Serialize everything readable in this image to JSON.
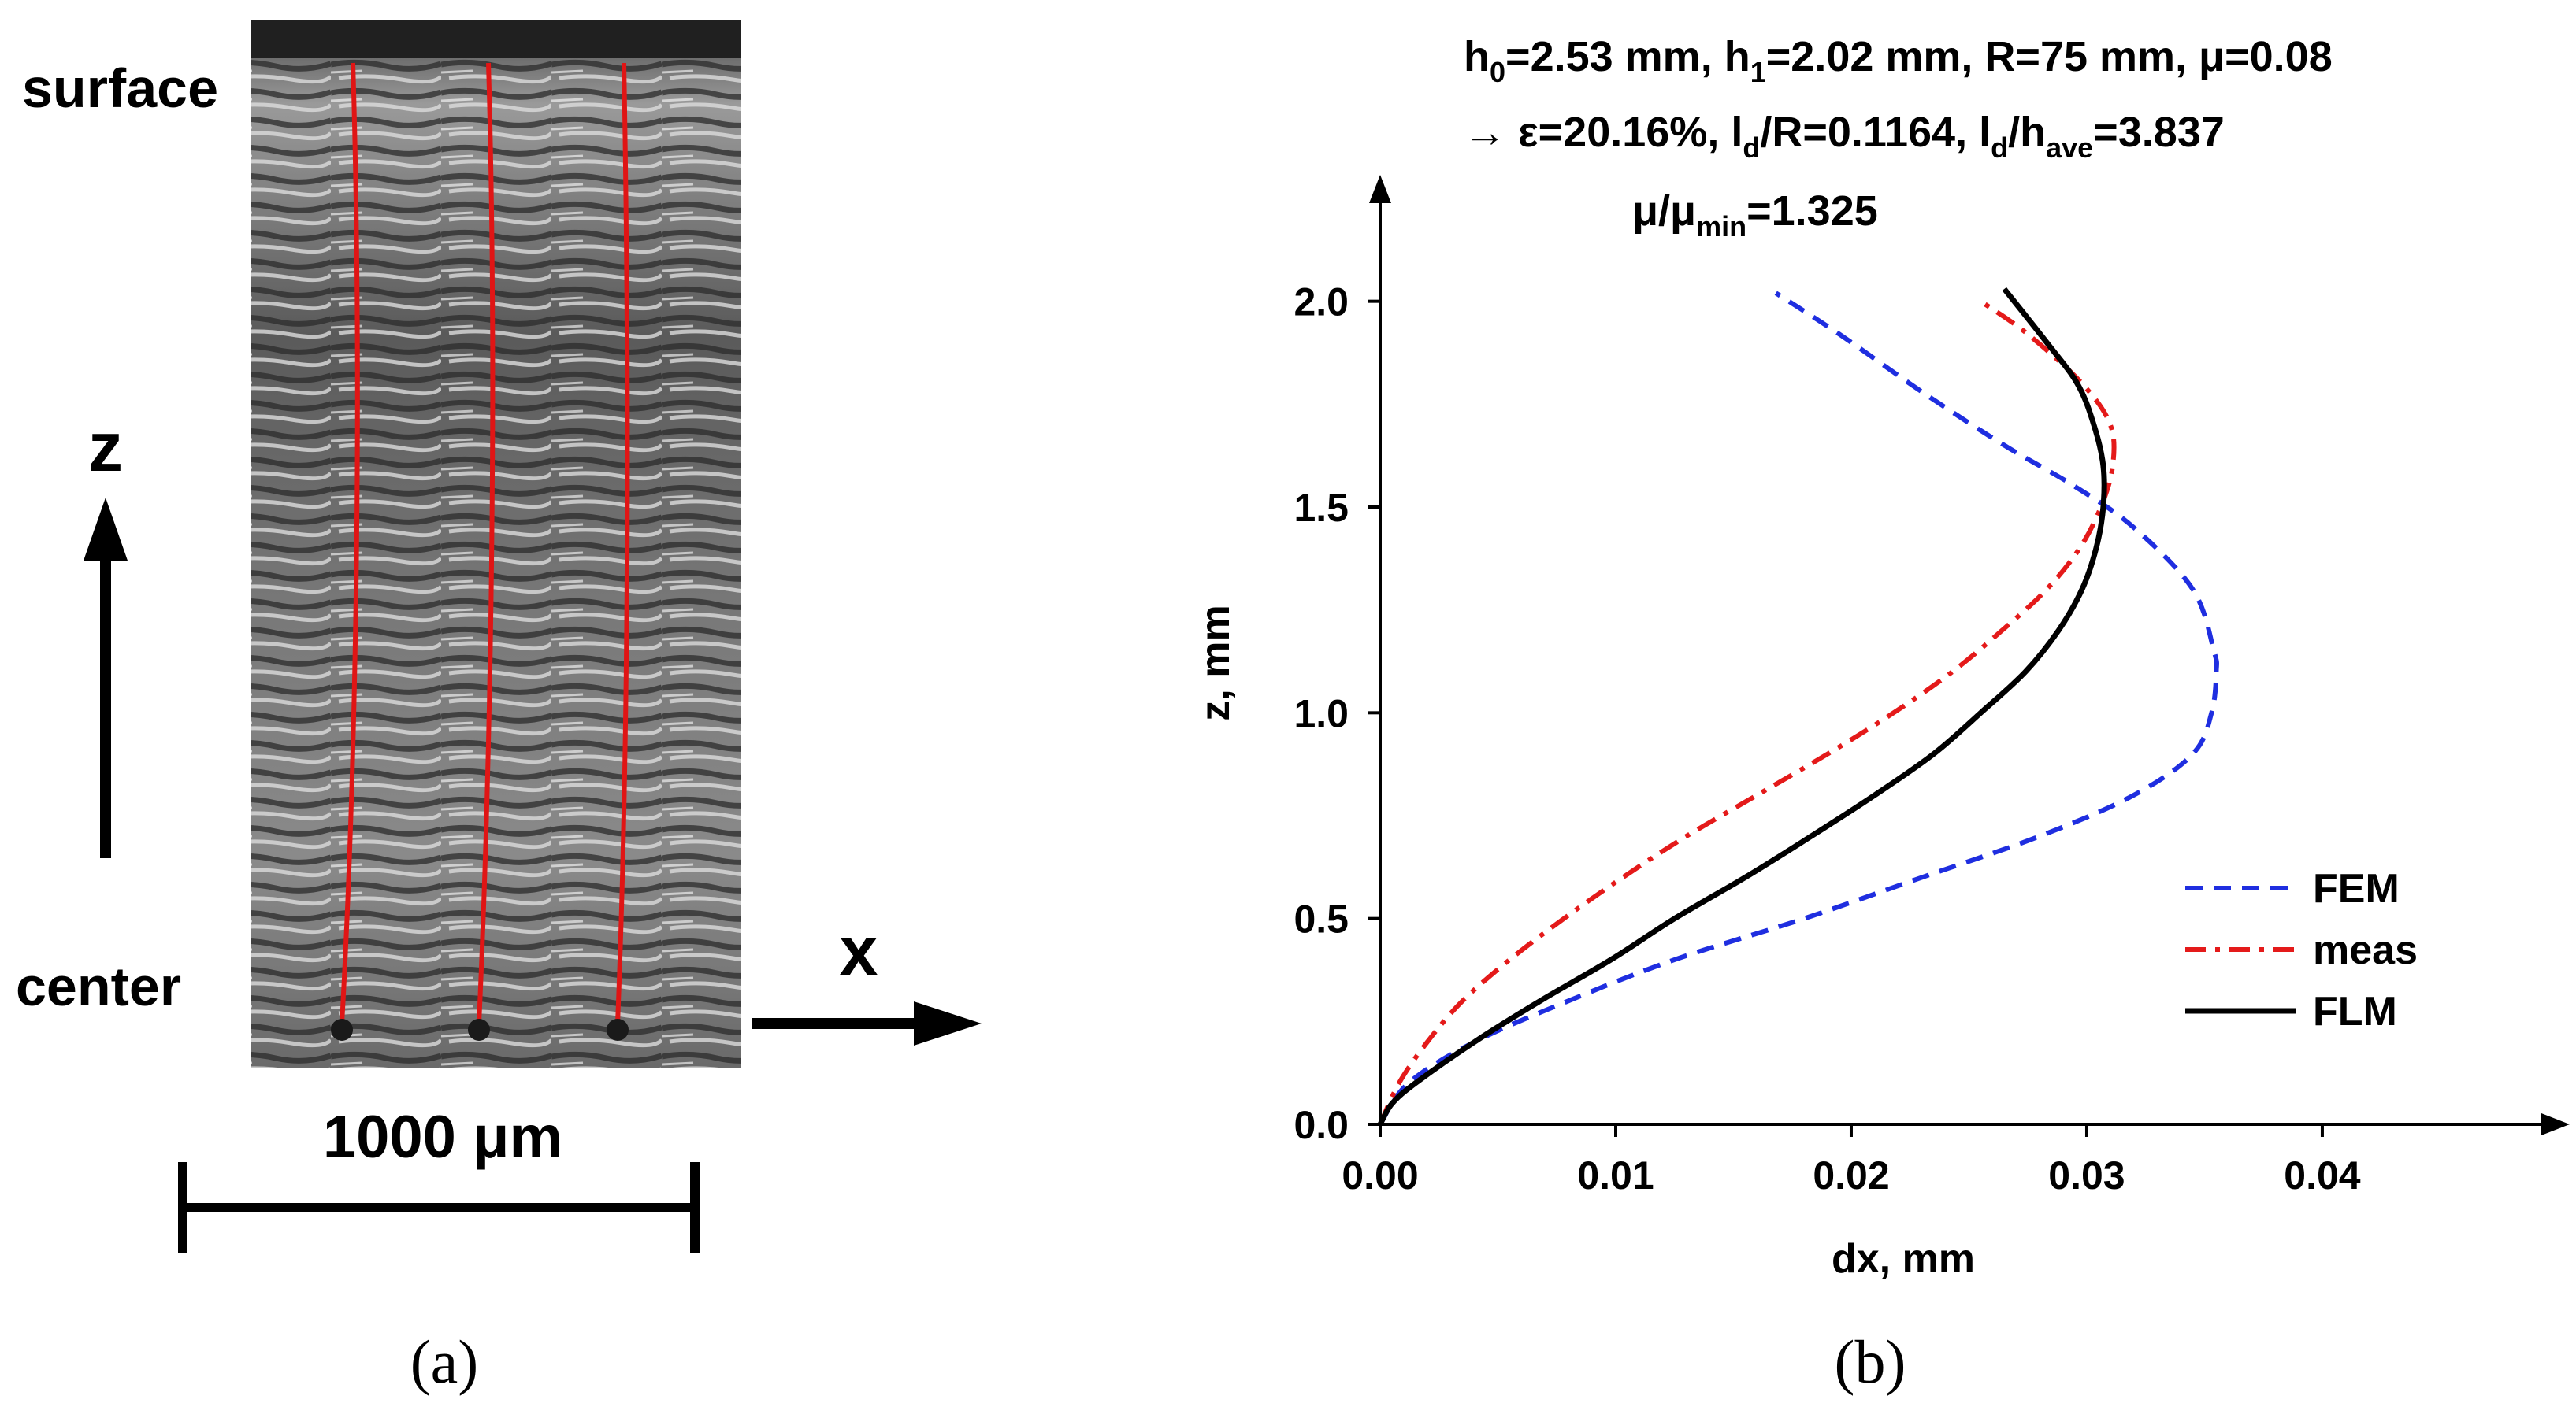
{
  "panel_a": {
    "surface_label": "surface",
    "center_label": "center",
    "z_axis_label": "z",
    "x_axis_label": "x",
    "scale_bar_label": "1000 μm",
    "caption": "(a)"
  },
  "panel_b": {
    "caption": "(b)",
    "header_line1": {
      "h0_sym": "h",
      "h0_sub": "0",
      "h0_val": "=2.53 mm, ",
      "h1_sym": "h",
      "h1_sub": "1",
      "h1_val": "=2.02 mm, R=75 mm, μ=0.08"
    },
    "header_line2": {
      "arrow_eps": "→ ε=20.16%, ",
      "ld1_sym": "l",
      "ld1_sub": "d",
      "ld1_val": "/R=0.1164, ",
      "ld2_sym": "l",
      "ld2_sub": "d",
      "slash": "/h",
      "have_sub": "ave",
      "have_val": "=3.837"
    },
    "mu_ratio": {
      "mu": "μ/μ",
      "sub": "min",
      "val": "=1.325"
    }
  },
  "chart_data": {
    "type": "line",
    "title": "",
    "xlabel": "dx, mm",
    "ylabel": "z, mm",
    "xlim": [
      0.0,
      0.0495
    ],
    "ylim": [
      0.0,
      2.25
    ],
    "x_ticks": [
      0.0,
      0.01,
      0.02,
      0.03,
      0.04
    ],
    "x_tick_labels": [
      "0.00",
      "0.01",
      "0.02",
      "0.03",
      "0.04"
    ],
    "y_ticks": [
      0.0,
      0.5,
      1.0,
      1.5,
      2.0
    ],
    "y_tick_labels": [
      "0.0",
      "0.5",
      "1.0",
      "1.5",
      "2.0"
    ],
    "grid": false,
    "legend_position": "bottom-right",
    "series": [
      {
        "name": "FEM",
        "color": "#1f2ee0",
        "style": "dashed",
        "points": [
          [
            0,
            0
          ],
          [
            0.0012,
            0.1
          ],
          [
            0.004,
            0.2
          ],
          [
            0.008,
            0.3
          ],
          [
            0.0125,
            0.4
          ],
          [
            0.018,
            0.5
          ],
          [
            0.023,
            0.6
          ],
          [
            0.028,
            0.7
          ],
          [
            0.032,
            0.8
          ],
          [
            0.0345,
            0.9
          ],
          [
            0.0353,
            1.0
          ],
          [
            0.0355,
            1.1
          ],
          [
            0.0354,
            1.15
          ],
          [
            0.0345,
            1.3
          ],
          [
            0.032,
            1.45
          ],
          [
            0.0295,
            1.55
          ],
          [
            0.0265,
            1.65
          ],
          [
            0.023,
            1.78
          ],
          [
            0.0195,
            1.92
          ],
          [
            0.0168,
            2.02
          ]
        ]
      },
      {
        "name": "meas",
        "color": "#e41a1a",
        "style": "dashdot",
        "points": [
          [
            0,
            0
          ],
          [
            0.0008,
            0.1
          ],
          [
            0.002,
            0.2
          ],
          [
            0.0035,
            0.3
          ],
          [
            0.0055,
            0.4
          ],
          [
            0.0078,
            0.5
          ],
          [
            0.0103,
            0.6
          ],
          [
            0.013,
            0.7
          ],
          [
            0.016,
            0.8
          ],
          [
            0.019,
            0.9
          ],
          [
            0.0218,
            1.0
          ],
          [
            0.0243,
            1.1
          ],
          [
            0.0264,
            1.2
          ],
          [
            0.0283,
            1.3
          ],
          [
            0.0297,
            1.4
          ],
          [
            0.0306,
            1.5
          ],
          [
            0.0311,
            1.6
          ],
          [
            0.031,
            1.7
          ],
          [
            0.0298,
            1.8
          ],
          [
            0.0275,
            1.92
          ],
          [
            0.0255,
            2.0
          ]
        ]
      },
      {
        "name": "FLM",
        "color": "#000000",
        "style": "solid",
        "points": [
          [
            0,
            0
          ],
          [
            0.0005,
            0.05
          ],
          [
            0.0015,
            0.1
          ],
          [
            0.004,
            0.2
          ],
          [
            0.0068,
            0.3
          ],
          [
            0.0098,
            0.4
          ],
          [
            0.0125,
            0.5
          ],
          [
            0.0155,
            0.6
          ],
          [
            0.0183,
            0.7
          ],
          [
            0.021,
            0.8
          ],
          [
            0.0235,
            0.9
          ],
          [
            0.0255,
            1.0
          ],
          [
            0.0274,
            1.1
          ],
          [
            0.0288,
            1.2
          ],
          [
            0.0298,
            1.3
          ],
          [
            0.0304,
            1.4
          ],
          [
            0.0307,
            1.5
          ],
          [
            0.0307,
            1.6
          ],
          [
            0.0303,
            1.7
          ],
          [
            0.0296,
            1.8
          ],
          [
            0.0283,
            1.9
          ],
          [
            0.0265,
            2.03
          ]
        ]
      }
    ]
  }
}
